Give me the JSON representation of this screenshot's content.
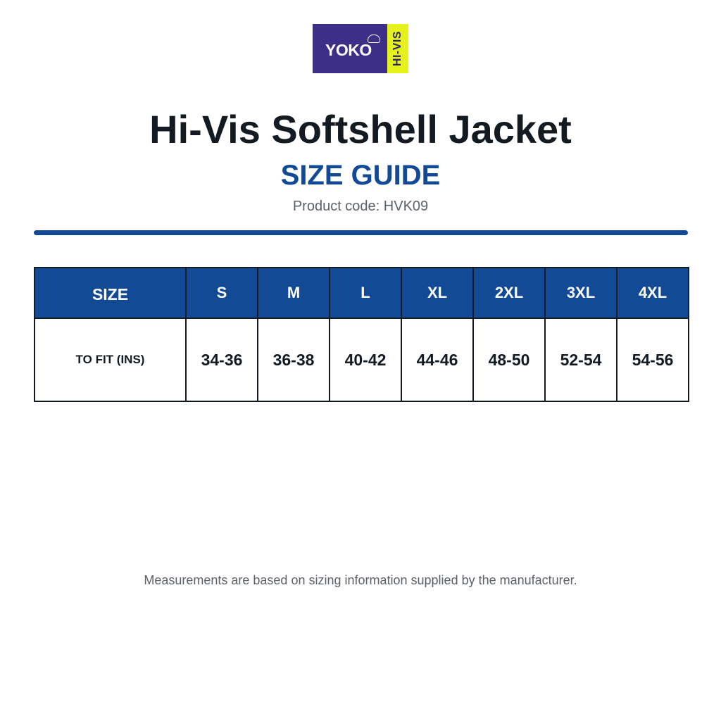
{
  "logo": {
    "brand": "YOKO",
    "side_text": "HI-VIS",
    "colors": {
      "main": "#3d2e87",
      "side": "#e6f01a"
    }
  },
  "header": {
    "title": "Hi-Vis Softshell Jacket",
    "subtitle": "SIZE GUIDE",
    "product_code": "Product code: HVK09"
  },
  "table": {
    "header_label": "SIZE",
    "sizes": [
      "S",
      "M",
      "L",
      "XL",
      "2XL",
      "3XL",
      "4XL"
    ],
    "rows": [
      {
        "label": "TO FIT (INS)",
        "values": [
          "34-36",
          "36-38",
          "40-42",
          "44-46",
          "48-50",
          "52-54",
          "54-56"
        ]
      }
    ]
  },
  "footnote": "Measurements are based on sizing information supplied by the manufacturer.",
  "colors": {
    "accent": "#124a96",
    "text": "#141a22",
    "muted": "#5d6169"
  }
}
